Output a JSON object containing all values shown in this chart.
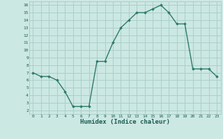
{
  "x": [
    0,
    1,
    2,
    3,
    4,
    5,
    6,
    7,
    8,
    9,
    10,
    11,
    12,
    13,
    14,
    15,
    16,
    17,
    18,
    19,
    20,
    21,
    22,
    23
  ],
  "y": [
    7.0,
    6.5,
    6.5,
    6.0,
    4.5,
    2.5,
    2.5,
    2.5,
    8.5,
    8.5,
    11.0,
    13.0,
    14.0,
    15.0,
    15.0,
    15.5,
    16.0,
    15.0,
    13.5,
    13.5,
    7.5,
    7.5,
    7.5,
    6.5
  ],
  "line_color": "#2d7a6c",
  "bg_color": "#cce8e3",
  "grid_color": "#aacfc9",
  "xlabel": "Humidex (Indice chaleur)",
  "xlabel_color": "#1a5c52",
  "tick_color": "#1a5c52",
  "xlim": [
    -0.5,
    23.5
  ],
  "ylim": [
    1.5,
    16.5
  ],
  "xticks": [
    0,
    1,
    2,
    3,
    4,
    5,
    6,
    7,
    8,
    9,
    10,
    11,
    12,
    13,
    14,
    15,
    16,
    17,
    18,
    19,
    20,
    21,
    22,
    23
  ],
  "yticks": [
    2,
    3,
    4,
    5,
    6,
    7,
    8,
    9,
    10,
    11,
    12,
    13,
    14,
    15,
    16
  ],
  "marker": "D",
  "markersize": 1.8,
  "linewidth": 1.0
}
